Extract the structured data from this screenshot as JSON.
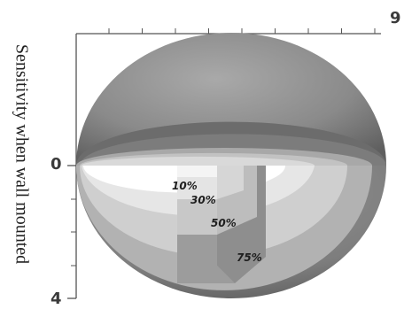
{
  "axis": {
    "title": "Sensitivity when wall mounted",
    "tick_top_left": "0",
    "tick_bottom_left": "4",
    "tick_top_right": "9"
  },
  "zones": [
    {
      "label": "10%",
      "color": "#ffffff"
    },
    {
      "label": "30%",
      "color": "#e9e9e9"
    },
    {
      "label": "50%",
      "color": "#d4d4d4"
    },
    {
      "label": "75%",
      "color": "#b4b4b4"
    }
  ],
  "colors": {
    "dome_top": "#858585",
    "dome_bottom": "#8c8c8c",
    "axis_line": "#555555"
  }
}
